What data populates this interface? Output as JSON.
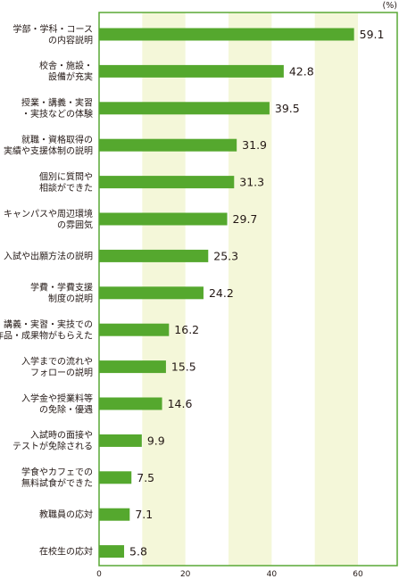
{
  "chart_data": {
    "type": "bar",
    "orientation": "horizontal",
    "unit": "(%)",
    "categories": [
      [
        "学部・学科・コース",
        "の内容説明"
      ],
      [
        "校舎・施設・",
        "設備が充実"
      ],
      [
        "授業・講義・実習",
        "・実技などの体験"
      ],
      [
        "就職・資格取得の",
        "実績や支援体制の説明"
      ],
      [
        "個別に質問や",
        "相談ができた"
      ],
      [
        "キャンパスや周辺環境",
        "の雰囲気"
      ],
      [
        "入試や出願方法の説明"
      ],
      [
        "学費・学費支援",
        "制度の説明"
      ],
      [
        "授業・講義・実習・実技での",
        "作品・成果物がもらえた"
      ],
      [
        "入学までの流れや",
        "フォローの説明"
      ],
      [
        "入学金や授業料等",
        "の免除・優遇"
      ],
      [
        "入試時の面接や",
        "テストが免除される"
      ],
      [
        "学食やカフェでの",
        "無料試食ができた"
      ],
      [
        "教職員の応対"
      ],
      [
        "在校生の応対"
      ]
    ],
    "values": [
      59.1,
      42.8,
      39.5,
      31.9,
      31.3,
      29.7,
      25.3,
      24.2,
      16.2,
      15.5,
      14.6,
      9.9,
      7.5,
      7.1,
      5.8
    ],
    "value_labels": [
      "59.1",
      "42.8",
      "39.5",
      "31.9",
      "31.3",
      "29.7",
      "25.3",
      "24.2",
      "16.2",
      "15.5",
      "14.6",
      "9.9",
      "7.5",
      "7.1",
      "5.8"
    ],
    "xlim": [
      0,
      70
    ],
    "xticks": [
      0,
      20,
      40,
      60
    ],
    "xtick_labels": [
      "0",
      "20",
      "40",
      "60"
    ],
    "shaded_bands": [
      [
        10,
        20
      ],
      [
        30,
        40
      ],
      [
        50,
        60
      ]
    ],
    "colors": {
      "bar": "#55a82e",
      "frame": "#59a935",
      "band": "#f4f7d9",
      "text": "#231815"
    }
  }
}
